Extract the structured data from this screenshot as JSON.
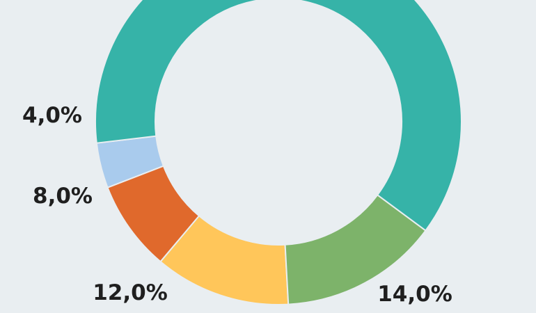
{
  "chart_data": {
    "type": "pie",
    "variant": "donut",
    "slices": [
      {
        "label": "4,0%",
        "value": 4.0,
        "color": "#a9cbed"
      },
      {
        "label": "8,0%",
        "value": 8.0,
        "color": "#e0692c"
      },
      {
        "label": "12,0%",
        "value": 12.0,
        "color": "#ffc65a"
      },
      {
        "label": "14,0%",
        "value": 14.0,
        "color": "#7db36a"
      },
      {
        "label": "",
        "value": 62.0,
        "color": "#36b3a8"
      }
    ],
    "legend": "none",
    "title": ""
  },
  "colors": {
    "background": "#e9eef1",
    "label_text": "#1f1f1f"
  }
}
